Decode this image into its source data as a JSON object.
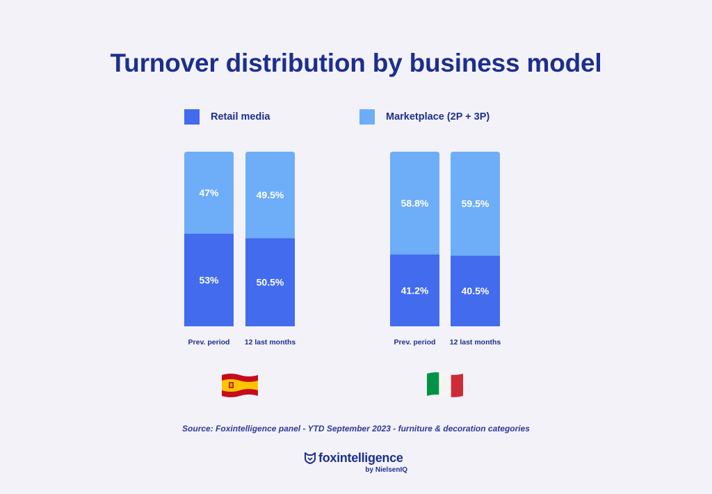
{
  "colors": {
    "retail_media": "#426bee",
    "marketplace": "#6eadf7",
    "title": "#1b2f8f"
  },
  "legend": {
    "retail_media": "Retail media",
    "marketplace": "Marketplace (2P + 3P)"
  },
  "chart_data": [
    {
      "type": "bar",
      "stacked": true,
      "group": "Spain",
      "flag": "spain-flag-icon",
      "categories": [
        "Prev. period",
        "12 last months"
      ],
      "series": [
        {
          "name": "Retail media",
          "values": [
            53,
            50.5
          ],
          "labels": [
            "53%",
            "50.5%"
          ]
        },
        {
          "name": "Marketplace (2P + 3P)",
          "values": [
            47,
            49.5
          ],
          "labels": [
            "47%",
            "49.5%"
          ]
        }
      ],
      "ylim": [
        0,
        100
      ]
    },
    {
      "type": "bar",
      "stacked": true,
      "group": "Italy",
      "flag": "italy-flag-icon",
      "categories": [
        "Prev. period",
        "12 last months"
      ],
      "series": [
        {
          "name": "Retail media",
          "values": [
            41.2,
            40.5
          ],
          "labels": [
            "41.2%",
            "40.5%"
          ]
        },
        {
          "name": "Marketplace (2P + 3P)",
          "values": [
            58.8,
            59.5
          ],
          "labels": [
            "58.8%",
            "59.5%"
          ]
        }
      ],
      "ylim": [
        0,
        100
      ]
    }
  ],
  "header": {
    "title": "Turnover distribution by business model"
  },
  "footer": {
    "source": "Source: Foxintelligence panel - YTD September 2023 - furniture & decoration categories",
    "brand": "foxintelligence",
    "brand_sub": "by NielsenIQ",
    "brand_icon": "fox-shield-icon"
  }
}
